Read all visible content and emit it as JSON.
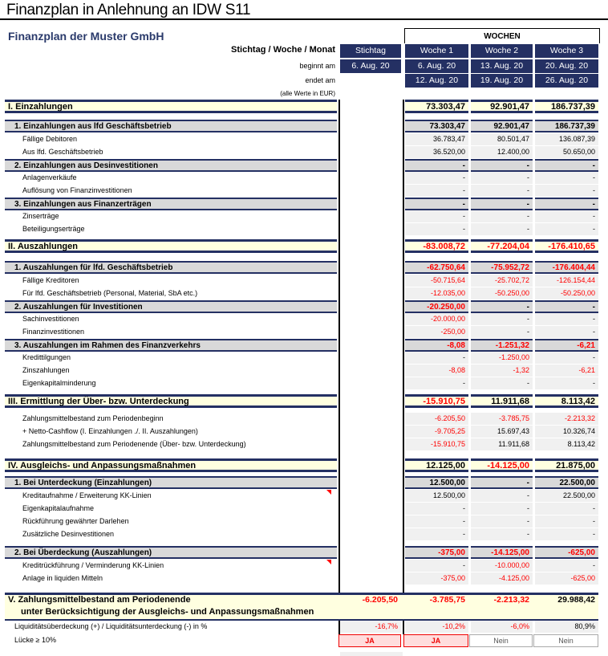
{
  "doc_title": "Finanzplan in Anlehnung an IDW S11",
  "plan_title": "Finanzplan der Muster GmbH",
  "wochen_label": "WOCHEN",
  "header": {
    "period_label": "Stichtag / Woche / Monat",
    "begins_label": "beginnt am",
    "ends_label": "endet am",
    "unit_note": "(alle Werte in EUR)",
    "columns": [
      "Stichtag",
      "Woche 1",
      "Woche 2",
      "Woche 3"
    ],
    "begins": [
      "6. Aug. 20",
      "6. Aug. 20",
      "13. Aug. 20",
      "20. Aug. 20"
    ],
    "ends": [
      "",
      "12. Aug. 20",
      "19. Aug. 20",
      "26. Aug. 20"
    ]
  },
  "colors": {
    "navy": "#243063",
    "section_bg": "#ffffe0",
    "sub_bg": "#d9d9d9",
    "negative": "#ff0000"
  },
  "rows": [
    {
      "type": "sec",
      "label": "I.   Einzahlungen",
      "st": "",
      "v": [
        "73.303,47",
        "92.901,47",
        "186.737,39"
      ]
    },
    {
      "type": "sub",
      "label": "1. Einzahlungen aus lfd Geschäftsbetrieb",
      "st": "",
      "v": [
        "73.303,47",
        "92.901,47",
        "186.737,39"
      ]
    },
    {
      "type": "det",
      "label": "Fällige Debitoren",
      "st": "",
      "v": [
        "36.783,47",
        "80.501,47",
        "136.087,39"
      ]
    },
    {
      "type": "det",
      "label": "Aus lfd. Geschäftsbetrieb",
      "st": "",
      "v": [
        "36.520,00",
        "12.400,00",
        "50.650,00"
      ]
    },
    {
      "type": "sub",
      "label": "2. Einzahlungen aus Desinvestitionen",
      "st": "",
      "v": [
        "-",
        "-",
        "-"
      ]
    },
    {
      "type": "det",
      "label": "Anlagenverkäufe",
      "st": "",
      "v": [
        "-",
        "-",
        "-"
      ]
    },
    {
      "type": "det",
      "label": "Auflösung von Finanzinvestitionen",
      "st": "",
      "v": [
        "-",
        "-",
        "-"
      ]
    },
    {
      "type": "sub",
      "label": "3. Einzahlungen aus Finanzerträgen",
      "st": "",
      "v": [
        "-",
        "-",
        "-"
      ]
    },
    {
      "type": "det",
      "label": "Zinserträge",
      "st": "",
      "v": [
        "-",
        "-",
        "-"
      ]
    },
    {
      "type": "det",
      "label": "Beteiligungserträge",
      "st": "",
      "v": [
        "-",
        "-",
        "-"
      ]
    },
    {
      "type": "sec",
      "label": "II.  Auszahlungen",
      "st": "",
      "v": [
        "-83.008,72",
        "-77.204,04",
        "-176.410,65"
      ]
    },
    {
      "type": "sub",
      "label": "1. Auszahlungen für lfd. Geschäftsbetrieb",
      "st": "",
      "v": [
        "-62.750,64",
        "-75.952,72",
        "-176.404,44"
      ]
    },
    {
      "type": "det",
      "label": "Fällige Kreditoren",
      "st": "",
      "v": [
        "-50.715,64",
        "-25.702,72",
        "-126.154,44"
      ]
    },
    {
      "type": "det",
      "label": "Für lfd. Geschäftsbetrieb (Personal, Material, SbA etc.)",
      "st": "",
      "v": [
        "-12.035,00",
        "-50.250,00",
        "-50.250,00"
      ]
    },
    {
      "type": "sub",
      "label": "2. Auszahlungen für Investitionen",
      "st": "",
      "v": [
        "-20.250,00",
        "-",
        "-"
      ]
    },
    {
      "type": "det",
      "label": "Sachinvestitionen",
      "st": "",
      "v": [
        "-20.000,00",
        "-",
        "-"
      ]
    },
    {
      "type": "det",
      "label": "Finanzinvestitionen",
      "st": "",
      "v": [
        "-250,00",
        "-",
        "-"
      ]
    },
    {
      "type": "sub",
      "label": "3. Auszahlungen im Rahmen des Finanzverkehrs",
      "st": "",
      "v": [
        "-8,08",
        "-1.251,32",
        "-6,21"
      ]
    },
    {
      "type": "det",
      "label": "Kredittilgungen",
      "st": "",
      "v": [
        "-",
        "-1.250,00",
        "-"
      ]
    },
    {
      "type": "det",
      "label": "Zinszahlungen",
      "st": "",
      "v": [
        "-8,08",
        "-1,32",
        "-6,21"
      ]
    },
    {
      "type": "det",
      "label": "Eigenkapitalminderung",
      "st": "",
      "v": [
        "-",
        "-",
        "-"
      ]
    },
    {
      "type": "sec",
      "label": "III. Ermittlung der Über- bzw. Unterdeckung",
      "st": "",
      "v": [
        "-15.910,75",
        "11.911,68",
        "8.113,42"
      ]
    },
    {
      "type": "det",
      "label": "Zahlungsmittelbestand zum Periodenbeginn",
      "st": "",
      "v": [
        "-6.205,50",
        "-3.785,75",
        "-2.213,32"
      ]
    },
    {
      "type": "det",
      "label": "+ Netto-Cashflow (I. Einzahlungen ./. II. Auszahlungen)",
      "st": "",
      "v": [
        "-9.705,25",
        "15.697,43",
        "10.326,74"
      ]
    },
    {
      "type": "det",
      "label": "Zahlungsmittelbestand zum Periodenende (Über- bzw. Unterdeckung)",
      "st": "",
      "v": [
        "-15.910,75",
        "11.911,68",
        "8.113,42"
      ]
    },
    {
      "type": "sec",
      "label": "IV. Ausgleichs- und Anpassungsmaßnahmen",
      "st": "",
      "v": [
        "12.125,00",
        "-14.125,00",
        "21.875,00"
      ]
    },
    {
      "type": "sub",
      "label": "1. Bei Unterdeckung (Einzahlungen)",
      "st": "",
      "v": [
        "12.500,00",
        "-",
        "22.500,00"
      ]
    },
    {
      "type": "det",
      "label": "Kreditaufnahme / Erweiterung KK-Linien",
      "st": "",
      "v": [
        "12.500,00",
        "-",
        "22.500,00"
      ],
      "comment": true
    },
    {
      "type": "det",
      "label": "Eigenkapitalaufnahme",
      "st": "",
      "v": [
        "-",
        "-",
        "-"
      ]
    },
    {
      "type": "det",
      "label": "Rückführung gewährter Darlehen",
      "st": "",
      "v": [
        "-",
        "-",
        "-"
      ]
    },
    {
      "type": "det",
      "label": "Zusätzliche Desinvestitionen",
      "st": "",
      "v": [
        "-",
        "-",
        "-"
      ]
    },
    {
      "type": "sub",
      "label": "2. Bei Überdeckung (Auszahlungen)",
      "st": "",
      "v": [
        "-375,00",
        "-14.125,00",
        "-625,00"
      ]
    },
    {
      "type": "det",
      "label": "Kreditrückführung / Verminderung KK-Linien",
      "st": "",
      "v": [
        "-",
        "-10.000,00",
        "-"
      ],
      "comment": true
    },
    {
      "type": "det",
      "label": "Anlage in liquiden Mitteln",
      "st": "",
      "v": [
        "-375,00",
        "-4.125,00",
        "-625,00"
      ]
    }
  ],
  "final": {
    "label_line1": "V.  Zahlungsmittelbestand am Periodenende",
    "label_line2": "unter Berücksichtigung der Ausgleichs- und Anpassungsmaßnahmen",
    "values": [
      "-6.205,50",
      "-3.785,75",
      "-2.213,32",
      "29.988,42"
    ]
  },
  "liquidity": {
    "label": "Liquiditätsüberdeckung (+) / Liquiditätsunterdeckung (-) in %",
    "values": [
      "-16,7%",
      "-10,2%",
      "-6,0%",
      "80,9%"
    ]
  },
  "gap": {
    "label": "Lücke ≥ 10%",
    "values": [
      "JA",
      "JA",
      "Nein",
      "Nein"
    ]
  }
}
